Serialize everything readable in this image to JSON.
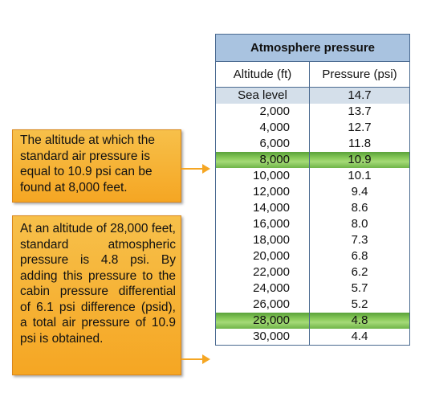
{
  "callouts": {
    "first": "The altitude at which the standard air pressure is equal to 10.9 psi can be found at 8,000 feet.",
    "second": "At an altitude of 28,000 feet, standard atmospheric pressure is 4.8 psi. By adding this pressure to the cabin pressure differential of 6.1 psi difference (psid), a total air pressure of 10.9 psi is obtained."
  },
  "table": {
    "title": "Atmosphere pressure",
    "col1": "Altitude (ft)",
    "col2": "Pressure (psi)",
    "rows": [
      {
        "altitude": "Sea level",
        "pressure": "14.7"
      },
      {
        "altitude": "2,000",
        "pressure": "13.7"
      },
      {
        "altitude": "4,000",
        "pressure": "12.7"
      },
      {
        "altitude": "6,000",
        "pressure": "11.8"
      },
      {
        "altitude": "8,000",
        "pressure": "10.9"
      },
      {
        "altitude": "10,000",
        "pressure": "10.1"
      },
      {
        "altitude": "12,000",
        "pressure": "9.4"
      },
      {
        "altitude": "14,000",
        "pressure": "8.6"
      },
      {
        "altitude": "16,000",
        "pressure": "8.0"
      },
      {
        "altitude": "18,000",
        "pressure": "7.3"
      },
      {
        "altitude": "20,000",
        "pressure": "6.8"
      },
      {
        "altitude": "22,000",
        "pressure": "6.2"
      },
      {
        "altitude": "24,000",
        "pressure": "5.7"
      },
      {
        "altitude": "26,000",
        "pressure": "5.2"
      },
      {
        "altitude": "28,000",
        "pressure": "4.8"
      },
      {
        "altitude": "30,000",
        "pressure": "4.4"
      }
    ]
  },
  "colors": {
    "callout": "#f5a623",
    "header": "#a9c3e0",
    "highlight": "#7cc150",
    "border": "#4a6a90"
  }
}
